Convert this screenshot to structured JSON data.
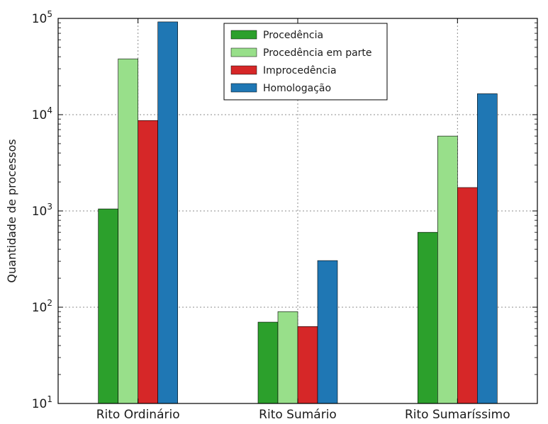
{
  "chart_data": {
    "type": "bar",
    "title": "",
    "xlabel": "",
    "ylabel": "Quantidade de processos",
    "yscale": "log",
    "ylim": [
      10,
      100000
    ],
    "grid": true,
    "legend_position": "top-center",
    "categories": [
      "Rito Ordinário",
      "Rito Sumário",
      "Rito Sumaríssimo"
    ],
    "series": [
      {
        "name": "Procedência",
        "color": "#2ca02c",
        "values": [
          1050,
          70,
          600
        ]
      },
      {
        "name": "Procedência em parte",
        "color": "#98df8a",
        "values": [
          38000,
          90,
          6000
        ]
      },
      {
        "name": "Improcedência",
        "color": "#d62728",
        "values": [
          8700,
          63,
          1750
        ]
      },
      {
        "name": "Homologação",
        "color": "#1f77b4",
        "values": [
          92000,
          305,
          16500
        ]
      }
    ],
    "y_ticks": [
      {
        "value": 10,
        "base": "10",
        "exp": "1"
      },
      {
        "value": 100,
        "base": "10",
        "exp": "2"
      },
      {
        "value": 1000,
        "base": "10",
        "exp": "3"
      },
      {
        "value": 10000,
        "base": "10",
        "exp": "4"
      },
      {
        "value": 100000,
        "base": "10",
        "exp": "5"
      }
    ]
  }
}
